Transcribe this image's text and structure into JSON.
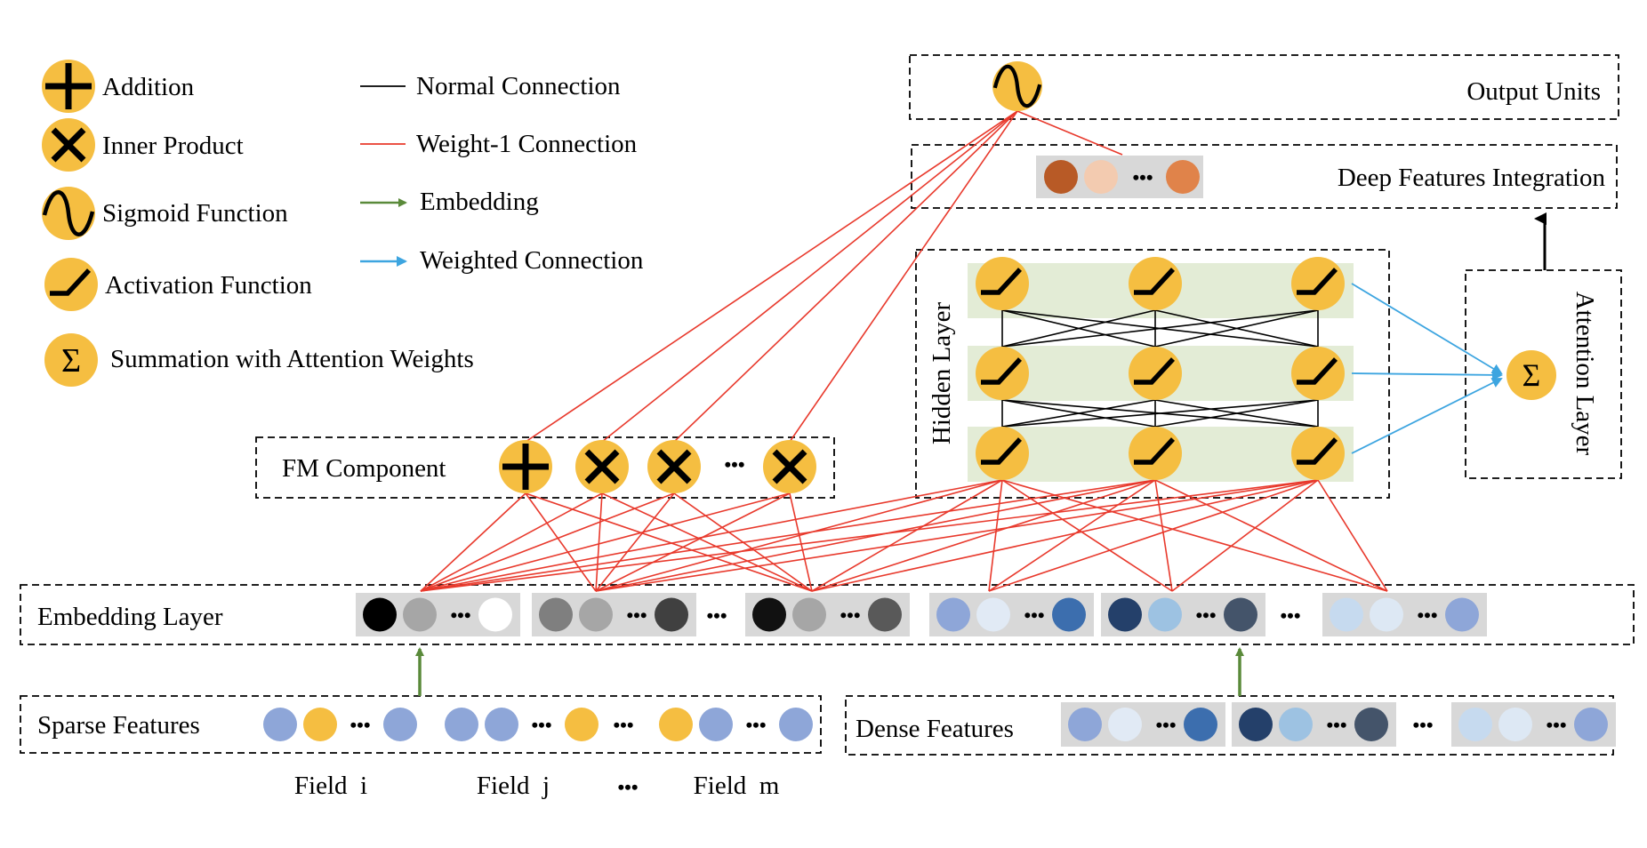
{
  "legend": {
    "addition": "Addition",
    "inner_product": "Inner Product",
    "sigmoid": "Sigmoid Function",
    "activation": "Activation Function",
    "summation": "Summation with Attention Weights",
    "normal_connection": "Normal Connection",
    "weight1_connection": "Weight-1 Connection",
    "embedding": "Embedding",
    "weighted_connection": "Weighted Connection"
  },
  "boxes": {
    "output_units": "Output Units",
    "deep_features": "Deep Features Integration",
    "hidden_layer": "Hidden Layer",
    "attention_layer": "Attention Layer",
    "fm_component": "FM Component",
    "embedding_layer": "Embedding Layer",
    "sparse_features": "Sparse Features",
    "dense_features": "Dense Features"
  },
  "fields": {
    "field_i": "Field  i",
    "field_j": "Field  j",
    "field_m": "Field  m",
    "ellipsis": "•••"
  },
  "symbols": {
    "sigma": "Σ",
    "dots": "•••"
  },
  "colors": {
    "node_yellow": "#F5BE41",
    "red_line": "#E8392C",
    "green_arrow": "#5A8A3A",
    "blue_arrow": "#3DA5E0",
    "hidden_band": "#E3ECD6",
    "emb_gray_bg": "#D8D8D8"
  }
}
